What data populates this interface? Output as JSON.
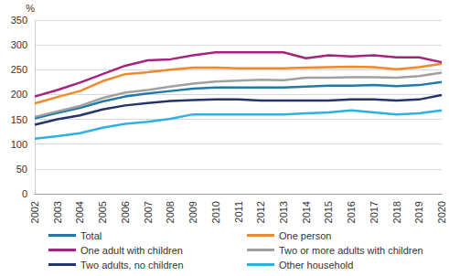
{
  "chart_data": {
    "type": "line",
    "ylabel": "%",
    "categories": [
      "2002",
      "2003",
      "2004",
      "2005",
      "2006",
      "2007",
      "2008",
      "2009",
      "2010",
      "2011",
      "2012",
      "2013",
      "2014",
      "2015",
      "2016",
      "2017",
      "2018",
      "2019",
      "2020"
    ],
    "series": [
      {
        "name": "Total",
        "color": "#1f7aa8",
        "values": [
          152,
          163,
          173,
          186,
          196,
          202,
          207,
          212,
          214,
          214,
          214,
          214,
          216,
          218,
          218,
          219,
          217,
          219,
          225
        ]
      },
      {
        "name": "One person",
        "color": "#f0892a",
        "values": [
          182,
          195,
          207,
          227,
          241,
          245,
          250,
          254,
          254,
          253,
          253,
          253,
          254,
          255,
          256,
          255,
          251,
          255,
          262
        ]
      },
      {
        "name": "One adult with children",
        "color": "#a4247f",
        "values": [
          196,
          209,
          224,
          241,
          258,
          269,
          271,
          279,
          285,
          285,
          285,
          285,
          273,
          279,
          277,
          279,
          275,
          275,
          265
        ]
      },
      {
        "name": "Two or more adults with children",
        "color": "#a0a0a0",
        "values": [
          155,
          166,
          177,
          193,
          204,
          209,
          216,
          222,
          226,
          228,
          230,
          229,
          234,
          234,
          235,
          235,
          234,
          237,
          244
        ]
      },
      {
        "name": "Two adults, no children",
        "color": "#24356b",
        "values": [
          139,
          150,
          158,
          170,
          178,
          183,
          187,
          189,
          190,
          190,
          188,
          188,
          188,
          188,
          190,
          190,
          188,
          190,
          199
        ]
      },
      {
        "name": "Other household",
        "color": "#2fb0e2",
        "values": [
          111,
          116,
          122,
          133,
          141,
          145,
          151,
          160,
          160,
          160,
          160,
          160,
          162,
          164,
          168,
          164,
          160,
          162,
          168
        ]
      }
    ],
    "ylim": [
      0,
      350
    ],
    "yticks": [
      0,
      50,
      100,
      150,
      200,
      250,
      300,
      350
    ],
    "grid": true,
    "legend": "bottom"
  }
}
